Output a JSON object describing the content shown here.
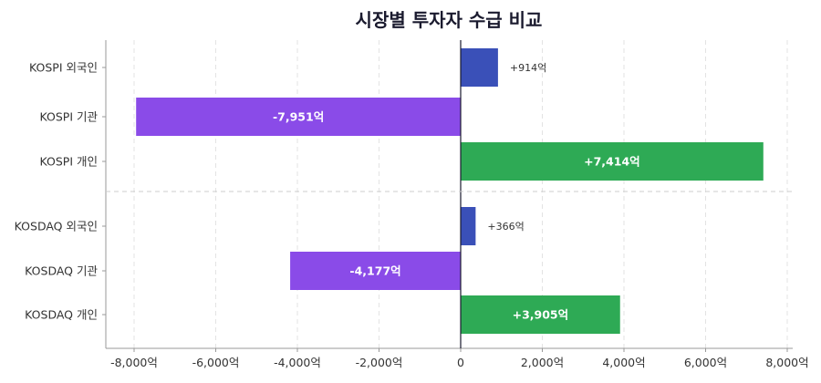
{
  "chart_data": {
    "type": "bar",
    "orientation": "horizontal",
    "title": "시장별 투자자 수급 비교",
    "xlabel": "",
    "ylabel": "",
    "xlim": [
      -8500,
      8200
    ],
    "x_ticks": [
      -8000,
      -6000,
      -4000,
      -2000,
      0,
      2000,
      4000,
      6000,
      8000
    ],
    "x_tick_labels": [
      "-8,000억",
      "-6,000억",
      "-4,000억",
      "-2,000억",
      "0",
      "2,000억",
      "4,000억",
      "6,000억",
      "8,000억"
    ],
    "categories": [
      "KOSPI 외국인",
      "KOSPI 기관",
      "KOSPI 개인",
      "KOSDAQ 외국인",
      "KOSDAQ 기관",
      "KOSDAQ 개인"
    ],
    "values": [
      914,
      -7951,
      7414,
      366,
      -4177,
      3905
    ],
    "value_labels": [
      "+914억",
      "-7,951억",
      "+7,414억",
      "+366억",
      "-4,177억",
      "+3,905억"
    ],
    "groups": [
      "KOSPI",
      "KOSPI",
      "KOSPI",
      "KOSDAQ",
      "KOSDAQ",
      "KOSDAQ"
    ],
    "investor_colors": {
      "외국인": "#3a50b8",
      "기관": "#8a4be8",
      "개인": "#2eaa55"
    },
    "grid": true,
    "legend": "none"
  }
}
